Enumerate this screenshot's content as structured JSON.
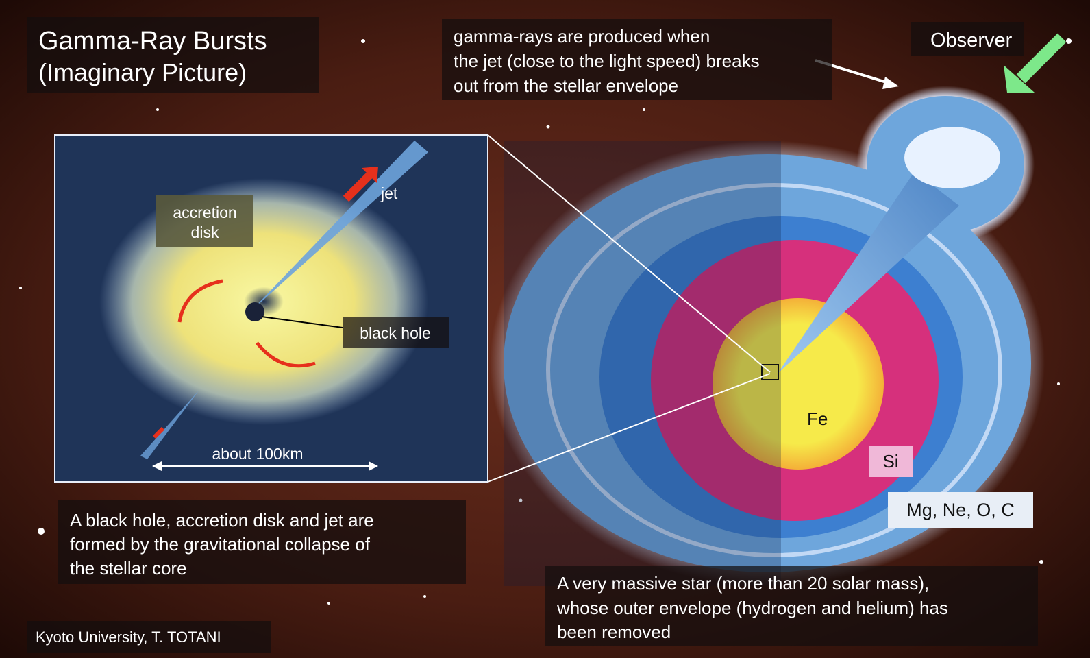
{
  "title": {
    "lines": [
      "Gamma-Ray Bursts",
      "(Imaginary Picture)"
    ]
  },
  "callouts": {
    "gamma_rays": {
      "lines": [
        "gamma-rays are produced when",
        "the jet (close to the light speed) breaks",
        "out from the stellar envelope"
      ]
    },
    "observer": "Observer"
  },
  "inset": {
    "accretion_disk": [
      "accretion",
      "disk"
    ],
    "jet": "jet",
    "black_hole": "black hole",
    "scale": "about 100km"
  },
  "collapse_note": {
    "lines": [
      "A black hole, accretion disk and jet are",
      "formed by the gravitational collapse of",
      "the stellar core"
    ]
  },
  "layers": {
    "core": "Fe",
    "silicon": "Si",
    "outer": "Mg, Ne, O, C"
  },
  "star_note": {
    "lines": [
      "A very massive star (more than 20 solar mass),",
      "whose outer envelope (hydrogen and helium) has",
      "been removed"
    ]
  },
  "credit": "Kyoto University, T. TOTANI"
}
